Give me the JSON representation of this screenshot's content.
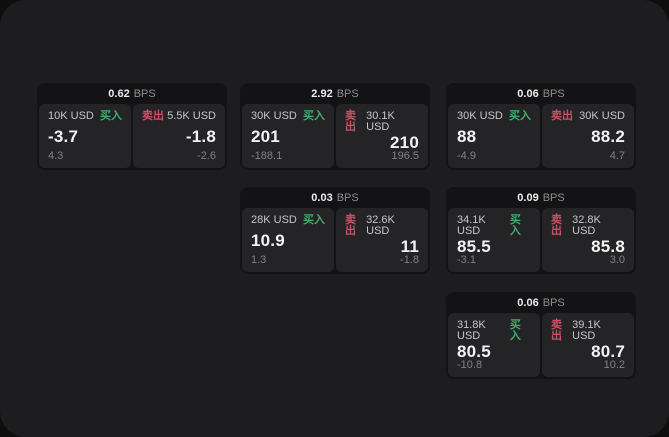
{
  "unit_label": "BPS",
  "buy_label": "买入",
  "sell_label": "卖出",
  "colors": {
    "buy_green": "#3fae6c",
    "sell_red": "#cd4f63",
    "panel_bg": "#1d1d1f",
    "card_bg": "#131315",
    "tile_bg": "#242427"
  },
  "cards": [
    {
      "bps": "0.62",
      "buy": {
        "amount": "10K USD",
        "price": "-3.7",
        "delta": "4.3"
      },
      "sell": {
        "amount": "5.5K USD",
        "price": "-1.8",
        "delta": "-2.6"
      }
    },
    {
      "bps": "2.92",
      "buy": {
        "amount": "30K USD",
        "price": "201",
        "delta": "-188.1"
      },
      "sell": {
        "amount": "30.1K USD",
        "price": "210",
        "delta": "196.5"
      }
    },
    {
      "bps": "0.06",
      "buy": {
        "amount": "30K USD",
        "price": "88",
        "delta": "-4.9"
      },
      "sell": {
        "amount": "30K USD",
        "price": "88.2",
        "delta": "4.7"
      }
    },
    {
      "bps": "0.03",
      "buy": {
        "amount": "28K USD",
        "price": "10.9",
        "delta": "1.3"
      },
      "sell": {
        "amount": "32.6K USD",
        "price": "11",
        "delta": "-1.8"
      }
    },
    {
      "bps": "0.09",
      "buy": {
        "amount": "34.1K USD",
        "price": "85.5",
        "delta": "-3.1"
      },
      "sell": {
        "amount": "32.8K USD",
        "price": "85.8",
        "delta": "3.0"
      }
    },
    {
      "bps": "0.06",
      "buy": {
        "amount": "31.8K USD",
        "price": "80.5",
        "delta": "-10.8"
      },
      "sell": {
        "amount": "39.1K USD",
        "price": "80.7",
        "delta": "10.2"
      }
    }
  ]
}
